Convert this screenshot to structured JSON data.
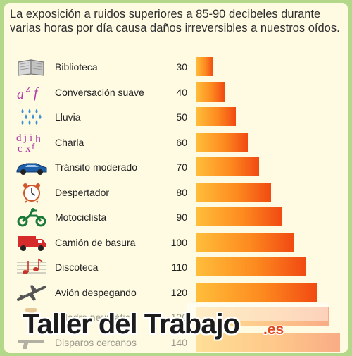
{
  "header": {
    "line1": "La exposición a ruidos superiores a 85-90 decibeles durante",
    "line2": "varias horas por día causa daños irreversibles a nuestros oídos."
  },
  "colors": {
    "bar_start": "#ffbe3a",
    "bar_end": "#f14a12",
    "background": "#fffbe3",
    "frame": "#b4d889",
    "watermark_suffix": "#e2461b"
  },
  "chart_data": {
    "type": "bar",
    "orientation": "horizontal",
    "title": "La exposición a ruidos superiores a 85-90 decibeles durante varias horas por día causa daños irreversibles a nuestros oídos.",
    "categories": [
      "Biblioteca",
      "Conversación suave",
      "Lluvia",
      "Charla",
      "Tránsito moderado",
      "Despertador",
      "Motociclista",
      "Camión de basura",
      "Discoteca",
      "Avión despegando",
      "Taladro neumático",
      "Disparos cercanos"
    ],
    "values": [
      30,
      40,
      50,
      60,
      70,
      80,
      90,
      100,
      110,
      120,
      130,
      140
    ],
    "icons": [
      "book-icon",
      "letters-icon",
      "raindrops-icon",
      "letters-icon",
      "car-icon",
      "alarm-clock-icon",
      "motorcycle-icon",
      "truck-icon",
      "music-notes-icon",
      "airplane-icon",
      "jackhammer-icon",
      "gun-icon"
    ],
    "xlim": [
      15,
      140
    ],
    "grid": false,
    "legend": "none"
  },
  "watermark": {
    "main": "Taller del Trabajo",
    "suffix": ".es"
  }
}
